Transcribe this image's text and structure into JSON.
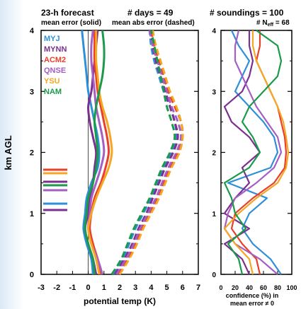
{
  "header": {
    "forecast": "23-h forecast",
    "days": "# days = 49",
    "soundings": "# soundings = 100",
    "neff_prefix": "# N",
    "neff_sub": "eff",
    "neff_suffix": " = 68",
    "mean_error": "mean error (solid)",
    "mean_abs_error": "mean abs error (dashed)"
  },
  "chart_data": [
    {
      "type": "line",
      "panel": "bias and mean absolute error profiles",
      "xlabel": "potential temp (K)",
      "ylabel": "km AGL",
      "xlim": [
        -3,
        7
      ],
      "ylim": [
        0,
        4
      ],
      "xticks": [
        "-3",
        "-2",
        "-1",
        "0",
        "1",
        "2",
        "3",
        "4",
        "5",
        "6",
        "7"
      ],
      "yticks": [
        "0",
        "1",
        "2",
        "3",
        "4"
      ],
      "zero_line": 0,
      "y": [
        0,
        0.25,
        0.5,
        0.75,
        1.0,
        1.25,
        1.5,
        1.75,
        2.0,
        2.25,
        2.5,
        2.75,
        3.0,
        3.25,
        3.5,
        3.75,
        4.0
      ],
      "series": [
        {
          "name": "MYJ",
          "color": "#2f8fd8",
          "mean_error": [
            0.3,
            0.2,
            -0.1,
            -0.3,
            -0.2,
            -0.1,
            0.2,
            0.6,
            0.7,
            0.6,
            0.4,
            0.2,
            0.0,
            -0.1,
            -0.2,
            -0.3,
            -0.4
          ],
          "mean_abs_error": [
            1.6,
            2.2,
            2.6,
            3.0,
            3.5,
            4.0,
            4.4,
            4.8,
            5.3,
            5.6,
            5.5,
            5.2,
            4.8,
            4.5,
            4.2,
            4.0,
            3.9
          ]
        },
        {
          "name": "MYNN",
          "color": "#7b2f8f",
          "mean_error": [
            0.5,
            0.3,
            0.0,
            -0.2,
            0.0,
            0.1,
            0.3,
            0.4,
            0.5,
            0.3,
            0.1,
            0.0,
            0.2,
            0.3,
            0.4,
            0.5,
            0.6
          ],
          "mean_abs_error": [
            1.7,
            2.3,
            2.8,
            3.2,
            3.7,
            4.1,
            4.5,
            4.9,
            5.4,
            5.7,
            5.5,
            5.2,
            4.9,
            4.6,
            4.3,
            4.1,
            4.0
          ]
        },
        {
          "name": "ACM2",
          "color": "#e8402a",
          "mean_error": [
            0.8,
            0.6,
            0.3,
            0.1,
            0.2,
            0.4,
            0.8,
            1.1,
            1.3,
            1.2,
            1.0,
            0.8,
            0.6,
            0.5,
            0.4,
            0.4,
            0.4
          ],
          "mean_abs_error": [
            1.9,
            2.5,
            3.0,
            3.4,
            3.9,
            4.4,
            4.8,
            5.2,
            5.7,
            6.0,
            5.9,
            5.5,
            5.1,
            4.8,
            4.5,
            4.2,
            4.0
          ]
        },
        {
          "name": "QNSE",
          "color": "#a65ec2",
          "mean_error": [
            0.9,
            0.6,
            0.2,
            0.0,
            0.1,
            0.2,
            0.5,
            0.8,
            1.0,
            0.9,
            0.7,
            0.5,
            0.4,
            0.3,
            0.2,
            0.2,
            0.3
          ],
          "mean_abs_error": [
            1.8,
            2.4,
            2.9,
            3.3,
            3.8,
            4.3,
            4.7,
            5.1,
            5.6,
            5.9,
            5.7,
            5.3,
            5.0,
            4.7,
            4.4,
            4.1,
            3.9
          ]
        },
        {
          "name": "YSU",
          "color": "#f5a623",
          "mean_error": [
            0.7,
            0.5,
            0.2,
            0.0,
            0.2,
            0.5,
            0.9,
            1.3,
            1.5,
            1.4,
            1.2,
            0.9,
            0.7,
            0.6,
            0.5,
            0.5,
            0.5
          ],
          "mean_abs_error": [
            2.0,
            2.6,
            3.1,
            3.5,
            4.0,
            4.5,
            4.9,
            5.3,
            5.8,
            6.0,
            5.9,
            5.6,
            5.2,
            4.9,
            4.6,
            4.3,
            4.1
          ]
        },
        {
          "name": "NAM",
          "color": "#1a9a4a",
          "mean_error": [
            0.4,
            0.3,
            0.0,
            -0.2,
            -0.1,
            0.0,
            0.3,
            0.5,
            0.6,
            0.5,
            0.4,
            0.5,
            0.7,
            0.9,
            1.0,
            1.0,
            0.9
          ],
          "mean_abs_error": [
            1.5,
            2.1,
            2.5,
            2.9,
            3.4,
            3.9,
            4.3,
            4.7,
            5.2,
            5.5,
            5.3,
            5.0,
            4.8,
            4.6,
            4.4,
            4.2,
            4.0
          ]
        }
      ]
    },
    {
      "type": "line",
      "panel": "significance",
      "xlabel": "confidence (%) in",
      "xlabel2": "mean error ≠ 0",
      "xlim": [
        0,
        100
      ],
      "ylim": [
        0,
        4
      ],
      "xticks": [
        "0",
        "20",
        "40",
        "60",
        "80",
        "100"
      ],
      "y": [
        0,
        0.25,
        0.5,
        0.75,
        1.0,
        1.25,
        1.5,
        1.75,
        2.0,
        2.25,
        2.5,
        2.75,
        3.0,
        3.25,
        3.5,
        3.75,
        4.0
      ],
      "series": [
        {
          "name": "MYJ",
          "color": "#2f8fd8",
          "values": [
            85,
            70,
            45,
            30,
            40,
            65,
            10,
            70,
            80,
            75,
            60,
            40,
            20,
            30,
            40,
            25,
            15
          ]
        },
        {
          "name": "MYNN",
          "color": "#7b2f8f",
          "values": [
            40,
            30,
            5,
            40,
            5,
            20,
            40,
            30,
            55,
            40,
            15,
            5,
            30,
            40,
            45,
            40,
            40
          ]
        },
        {
          "name": "ACM2",
          "color": "#e8402a",
          "values": [
            55,
            50,
            30,
            15,
            20,
            45,
            75,
            90,
            92,
            90,
            85,
            80,
            70,
            60,
            50,
            55,
            55
          ]
        },
        {
          "name": "QNSE",
          "color": "#a65ec2",
          "values": [
            80,
            55,
            20,
            5,
            10,
            20,
            50,
            75,
            85,
            80,
            65,
            50,
            40,
            30,
            20,
            20,
            25
          ]
        },
        {
          "name": "YSU",
          "color": "#f5a623",
          "values": [
            45,
            40,
            20,
            5,
            25,
            50,
            80,
            92,
            95,
            92,
            88,
            80,
            70,
            60,
            50,
            45,
            45
          ]
        },
        {
          "name": "NAM",
          "color": "#1a9a4a",
          "values": [
            30,
            25,
            10,
            35,
            20,
            15,
            5,
            40,
            55,
            45,
            30,
            40,
            60,
            80,
            85,
            80,
            50
          ]
        }
      ]
    }
  ]
}
